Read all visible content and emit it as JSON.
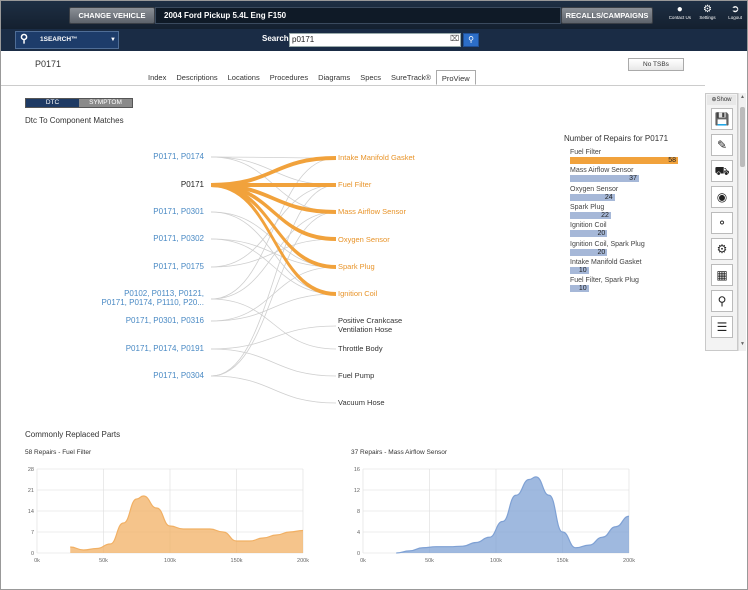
{
  "topbar": {
    "change_vehicle": "CHANGE VEHICLE",
    "vehicle": "2004 Ford Pickup 5.4L Eng F150",
    "recalls": "RECALLS/CAMPAIGNS",
    "contact": "Contact Us",
    "settings": "Settings",
    "logout": "Logout"
  },
  "searchbar": {
    "isearch": "1SEARCH™",
    "label": "Search",
    "value": "p0171"
  },
  "header": {
    "code": "P0171",
    "no_tsbs": "No TSBs"
  },
  "tabs": [
    "Index",
    "Descriptions",
    "Locations",
    "Procedures",
    "Diagrams",
    "Specs",
    "SureTrack®",
    "ProView"
  ],
  "active_tab": "ProView",
  "sidebar": {
    "show": "Show"
  },
  "toggle": {
    "dtc": "DTC",
    "symptom": "SYMPTOM"
  },
  "sankey": {
    "title": "Dtc To Component Matches",
    "dtcs": [
      "P0171, P0174",
      "P0171",
      "P0171, P0301",
      "P0171, P0302",
      "P0171, P0175",
      "P0102, P0113, P0121,",
      "P0171, P0174, P1110, P20...",
      "P0171, P0301, P0316",
      "P0171, P0174, P0191",
      "P0171, P0304"
    ],
    "components": [
      "Intake Manifold Gasket",
      "Fuel Filter",
      "Mass Airflow Sensor",
      "Oxygen Sensor",
      "Spark Plug",
      "Ignition Coil",
      "Positive Crankcase",
      "Ventilation Hose",
      "Throttle Body",
      "Fuel Pump",
      "Vacuum Hose"
    ]
  },
  "repairs": {
    "title": "Number of Repairs for P0171",
    "items": [
      {
        "name": "Fuel Filter",
        "value": 58
      },
      {
        "name": "Mass Airflow Sensor",
        "value": 37
      },
      {
        "name": "Oxygen Sensor",
        "value": 24
      },
      {
        "name": "Spark Plug",
        "value": 22
      },
      {
        "name": "Ignition Coil",
        "value": 20
      },
      {
        "name": "Ignition Coil, Spark Plug",
        "value": 20
      },
      {
        "name": "Intake Manifold Gasket",
        "value": 10
      },
      {
        "name": "Fuel Filter, Spark Plug",
        "value": 10
      }
    ]
  },
  "commonly": {
    "title": "Commonly Replaced Parts"
  },
  "chart_data": [
    {
      "type": "area",
      "title": "58 Repairs - Fuel Filter",
      "color": "#f1b064",
      "x_ticks": [
        "0k",
        "50k",
        "100k",
        "150k",
        "200k"
      ],
      "y_ticks": [
        "0",
        "7",
        "14",
        "21",
        "28"
      ],
      "ylim": [
        0,
        28
      ],
      "xlim": [
        0,
        200
      ],
      "x": [
        25,
        35,
        45,
        55,
        65,
        75,
        80,
        90,
        100,
        110,
        120,
        130,
        140,
        150,
        160,
        170,
        180,
        190,
        200
      ],
      "y": [
        2,
        1,
        1.5,
        3,
        10,
        18,
        19,
        15,
        9,
        8,
        8,
        8,
        7,
        4,
        4,
        5,
        6,
        7,
        7.5
      ]
    },
    {
      "type": "area",
      "title": "37 Repairs - Mass Airflow Sensor",
      "color": "#7fa1d4",
      "x_ticks": [
        "0k",
        "50k",
        "100k",
        "150k",
        "200k"
      ],
      "y_ticks": [
        "0",
        "4",
        "8",
        "12",
        "16"
      ],
      "ylim": [
        0,
        16
      ],
      "xlim": [
        0,
        200
      ],
      "x": [
        25,
        35,
        45,
        55,
        65,
        75,
        85,
        95,
        105,
        115,
        125,
        130,
        140,
        150,
        160,
        170,
        180,
        190,
        200
      ],
      "y": [
        0,
        0.4,
        1,
        1.2,
        1.2,
        1.3,
        2,
        3,
        6,
        11,
        14,
        14.5,
        11,
        4,
        1,
        1.5,
        3,
        5,
        7
      ]
    }
  ]
}
